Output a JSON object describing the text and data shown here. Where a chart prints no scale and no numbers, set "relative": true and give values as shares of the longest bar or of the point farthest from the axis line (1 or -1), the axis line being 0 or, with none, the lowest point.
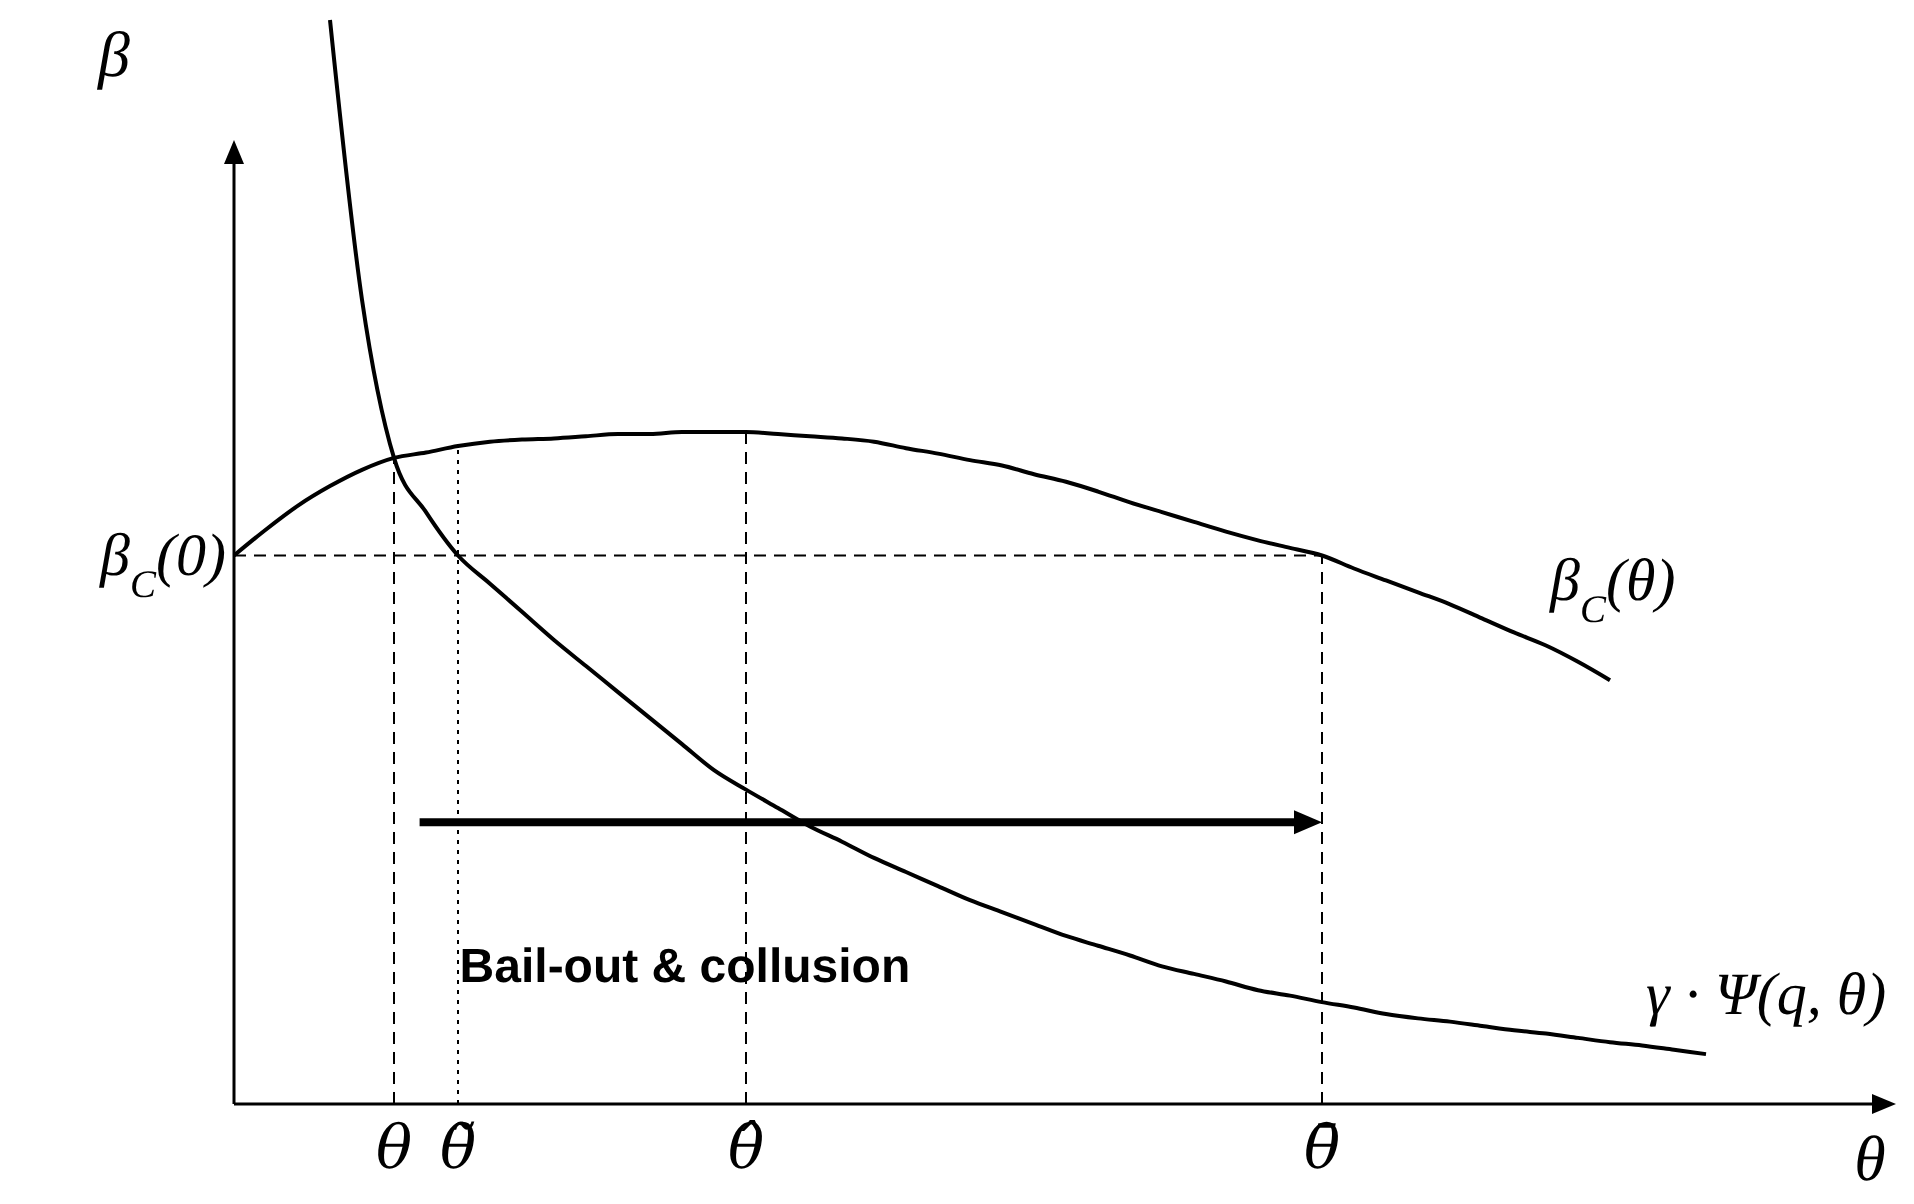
{
  "chart_data": {
    "type": "line",
    "relative": true,
    "xlabel": "θ",
    "ylabel": "β",
    "categories": [
      null,
      null,
      null,
      null,
      null,
      "θ",
      null,
      "θ̃",
      null,
      null,
      null,
      null,
      null,
      null,
      null,
      null,
      "θ̂",
      null,
      null,
      null,
      null,
      null,
      null,
      null,
      null,
      null,
      null,
      null,
      null,
      null,
      null,
      null,
      null,
      null,
      "θ̄",
      null,
      null,
      null,
      null,
      null,
      null,
      null,
      null,
      null,
      null,
      null,
      null,
      null,
      null,
      null,
      null,
      null
    ],
    "series": [
      {
        "name": "β$_{C}$(θ)",
        "color": "#000000",
        "values": [
          0.506,
          0.53,
          0.552,
          0.57,
          0.585,
          0.596,
          0.601,
          0.607,
          0.611,
          0.613,
          0.614,
          0.616,
          0.618,
          0.618,
          0.62,
          0.62,
          0.62,
          0.618,
          0.616,
          0.614,
          0.611,
          0.605,
          0.6,
          0.594,
          0.589,
          0.581,
          0.574,
          0.565,
          0.555,
          0.546,
          0.537,
          0.528,
          0.52,
          0.513,
          0.506,
          0.494,
          0.483,
          0.472,
          0.461,
          0.448,
          0.435,
          0.423,
          0.408,
          0.391,
          null,
          null,
          null,
          null,
          null,
          null,
          null,
          null
        ]
      },
      {
        "name": "γ · Ψ(q, θ)",
        "color": "#000000",
        "values": [
          null,
          null,
          null,
          1,
          0.742,
          0.596,
          0.546,
          0.506,
          0.48,
          0.454,
          0.428,
          0.404,
          0.38,
          0.356,
          0.332,
          0.308,
          0.29,
          0.273,
          0.256,
          0.242,
          0.227,
          0.214,
          0.201,
          0.188,
          0.177,
          0.166,
          0.155,
          0.146,
          0.137,
          0.127,
          0.12,
          0.113,
          0.105,
          0.1,
          0.094,
          0.089,
          0.083,
          0.079,
          0.076,
          0.072,
          0.068,
          0.065,
          0.061,
          0.057,
          0.054,
          0.05,
          0.046,
          null,
          null,
          null,
          null,
          null
        ]
      }
    ],
    "ref_lines": [
      {
        "axis": "x",
        "value": "θ",
        "line_style": "dashed"
      },
      {
        "axis": "x",
        "value": "θ̃",
        "line_style": "dotted"
      },
      {
        "axis": "x",
        "value": "θ̂",
        "line_style": "dashed"
      },
      {
        "axis": "x",
        "value": "θ̄",
        "line_style": "dashed"
      },
      {
        "axis": "y",
        "value": 0.506,
        "label": "β$_{C}$(0)",
        "line_style": "dashed"
      }
    ],
    "annotations": [
      {
        "text": "Bail-out & collusion",
        "x": "θ",
        "y": 0.26
      }
    ],
    "line_style": "solid",
    "marker": "none"
  }
}
